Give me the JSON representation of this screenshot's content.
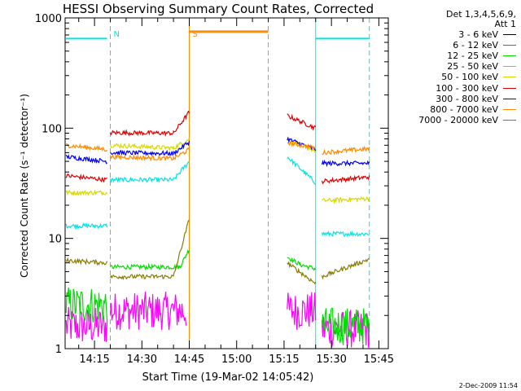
{
  "chart_data": {
    "type": "line",
    "title": "HESSI Observing Summary Count Rates, Corrected",
    "xlabel": "Start Time (19-Mar-02 14:05:42)",
    "ylabel": "Corrected Count Rate (s⁻¹ detector⁻¹)",
    "yscale": "log",
    "ylim": [
      1,
      1000
    ],
    "xlim": [
      "14:05:42",
      "15:48:00"
    ],
    "x_ticks": [
      "14:15",
      "14:30",
      "14:45",
      "15:00",
      "15:15",
      "15:30",
      "15:45"
    ],
    "y_ticks": [
      "1",
      "10",
      "100",
      "1000"
    ],
    "legend": {
      "header_line1": "Det 1,3,4,5,6,9,",
      "header_line2": "Att 1",
      "placement": "right"
    },
    "series": [
      {
        "name": "3 - 6 keV",
        "color": "#000000",
        "segments": []
      },
      {
        "name": "6 - 12 keV",
        "color": "#ff00ff",
        "segments": [
          {
            "x": [
              "14:06",
              "14:19"
            ],
            "y": [
              1.6,
              1.6
            ]
          },
          {
            "x": [
              "14:20",
              "14:44"
            ],
            "y": [
              2.2,
              2.2
            ]
          },
          {
            "x": [
              "15:16",
              "15:25"
            ],
            "y": [
              2.2,
              2.2
            ]
          },
          {
            "x": [
              "15:27",
              "15:42"
            ],
            "y": [
              1.5,
              1.5
            ]
          }
        ]
      },
      {
        "name": "12 - 25 keV",
        "color": "#00dd00",
        "segments": [
          {
            "x": [
              "14:06",
              "14:19"
            ],
            "y": [
              2.5,
              2.5
            ]
          },
          {
            "x": [
              "14:20",
              "14:42",
              "14:45"
            ],
            "y": [
              5.5,
              5.5,
              8
            ]
          },
          {
            "x": [
              "15:16",
              "15:20",
              "15:25"
            ],
            "y": [
              6.8,
              5.8,
              5.3
            ]
          },
          {
            "x": [
              "15:27",
              "15:42"
            ],
            "y": [
              1.6,
              1.6
            ]
          }
        ]
      },
      {
        "name": "25 - 50 keV",
        "color": "#00e5e5",
        "segments": [
          {
            "x": [
              "14:06",
              "14:19"
            ],
            "y": [
              13,
              13
            ]
          },
          {
            "x": [
              "14:20",
              "14:40",
              "14:45"
            ],
            "y": [
              34,
              34,
              50
            ]
          },
          {
            "x": [
              "15:16",
              "15:25"
            ],
            "y": [
              55,
              32
            ]
          },
          {
            "x": [
              "15:27",
              "15:42"
            ],
            "y": [
              11,
              11
            ]
          }
        ]
      },
      {
        "name": "50 - 100 keV",
        "color": "#d8d800",
        "segments": [
          {
            "x": [
              "14:06",
              "14:19"
            ],
            "y": [
              26,
              26
            ]
          },
          {
            "x": [
              "14:20",
              "14:40",
              "14:45"
            ],
            "y": [
              70,
              66,
              80
            ]
          },
          {
            "x": [
              "15:16",
              "15:25"
            ],
            "y": [
              78,
              63
            ]
          },
          {
            "x": [
              "15:27",
              "15:42"
            ],
            "y": [
              22,
              23
            ]
          }
        ]
      },
      {
        "name": "100 - 300 keV",
        "color": "#e00000",
        "segments": [
          {
            "x": [
              "14:06",
              "14:19"
            ],
            "y": [
              37,
              34
            ]
          },
          {
            "x": [
              "14:20",
              "14:40",
              "14:45"
            ],
            "y": [
              91,
              90,
              140
            ]
          },
          {
            "x": [
              "15:16",
              "15:25"
            ],
            "y": [
              130,
              100
            ]
          },
          {
            "x": [
              "15:27",
              "15:42"
            ],
            "y": [
              33,
              36
            ]
          }
        ]
      },
      {
        "name": "300 - 800 keV",
        "color": "#0000ff",
        "segments": [
          {
            "x": [
              "14:06",
              "14:19"
            ],
            "y": [
              55,
              50
            ]
          },
          {
            "x": [
              "14:20",
              "14:40",
              "14:45"
            ],
            "y": [
              60,
              59,
              75
            ]
          },
          {
            "x": [
              "15:16",
              "15:25"
            ],
            "y": [
              80,
              64
            ]
          },
          {
            "x": [
              "15:27",
              "15:42"
            ],
            "y": [
              48,
              48
            ]
          }
        ]
      },
      {
        "name": "800 - 7000 keV",
        "color": "#ff8c00",
        "segments": [
          {
            "x": [
              "14:06",
              "14:19"
            ],
            "y": [
              70,
              64
            ]
          },
          {
            "x": [
              "14:20",
              "14:40",
              "14:45"
            ],
            "y": [
              55,
              53,
              64
            ]
          },
          {
            "x": [
              "14:45",
              "15:10"
            ],
            "y": [
              750,
              750
            ]
          },
          {
            "x": [
              "15:16",
              "15:25"
            ],
            "y": [
              74,
              66
            ]
          },
          {
            "x": [
              "15:27",
              "15:42"
            ],
            "y": [
              60,
              65
            ]
          }
        ]
      },
      {
        "name": "7000 - 20000 keV",
        "color": "#8b7d00",
        "segments": [
          {
            "x": [
              "14:06",
              "14:19"
            ],
            "y": [
              6.3,
              6
            ]
          },
          {
            "x": [
              "14:20",
              "14:40",
              "14:45"
            ],
            "y": [
              4.5,
              4.5,
              15
            ]
          },
          {
            "x": [
              "15:16",
              "15:25"
            ],
            "y": [
              6,
              3.9
            ]
          },
          {
            "x": [
              "15:27",
              "15:42"
            ],
            "y": [
              4.5,
              6.5
            ]
          }
        ]
      }
    ],
    "markers": [
      {
        "label": "N",
        "x": "14:20",
        "color": "#00e5e5",
        "style": "dashed"
      },
      {
        "label": "S",
        "x": "14:45",
        "color": "#ff8c00",
        "style": "solid"
      },
      {
        "label": "",
        "x": "15:10",
        "color": "#ff8c00",
        "style": "dashed"
      },
      {
        "label": "",
        "x": "15:25",
        "color": "#00e5e5",
        "style": "solid"
      },
      {
        "label": "",
        "x": "15:42",
        "color": "#00e5e5",
        "style": "dashed"
      }
    ],
    "level_bars": [
      {
        "x": [
          "14:06",
          "14:19"
        ],
        "y": 650,
        "color": "#00e5e5"
      },
      {
        "x": [
          "15:25",
          "15:42"
        ],
        "y": 650,
        "color": "#00e5e5"
      }
    ]
  },
  "footer_date": "2-Dec-2009 11:54"
}
